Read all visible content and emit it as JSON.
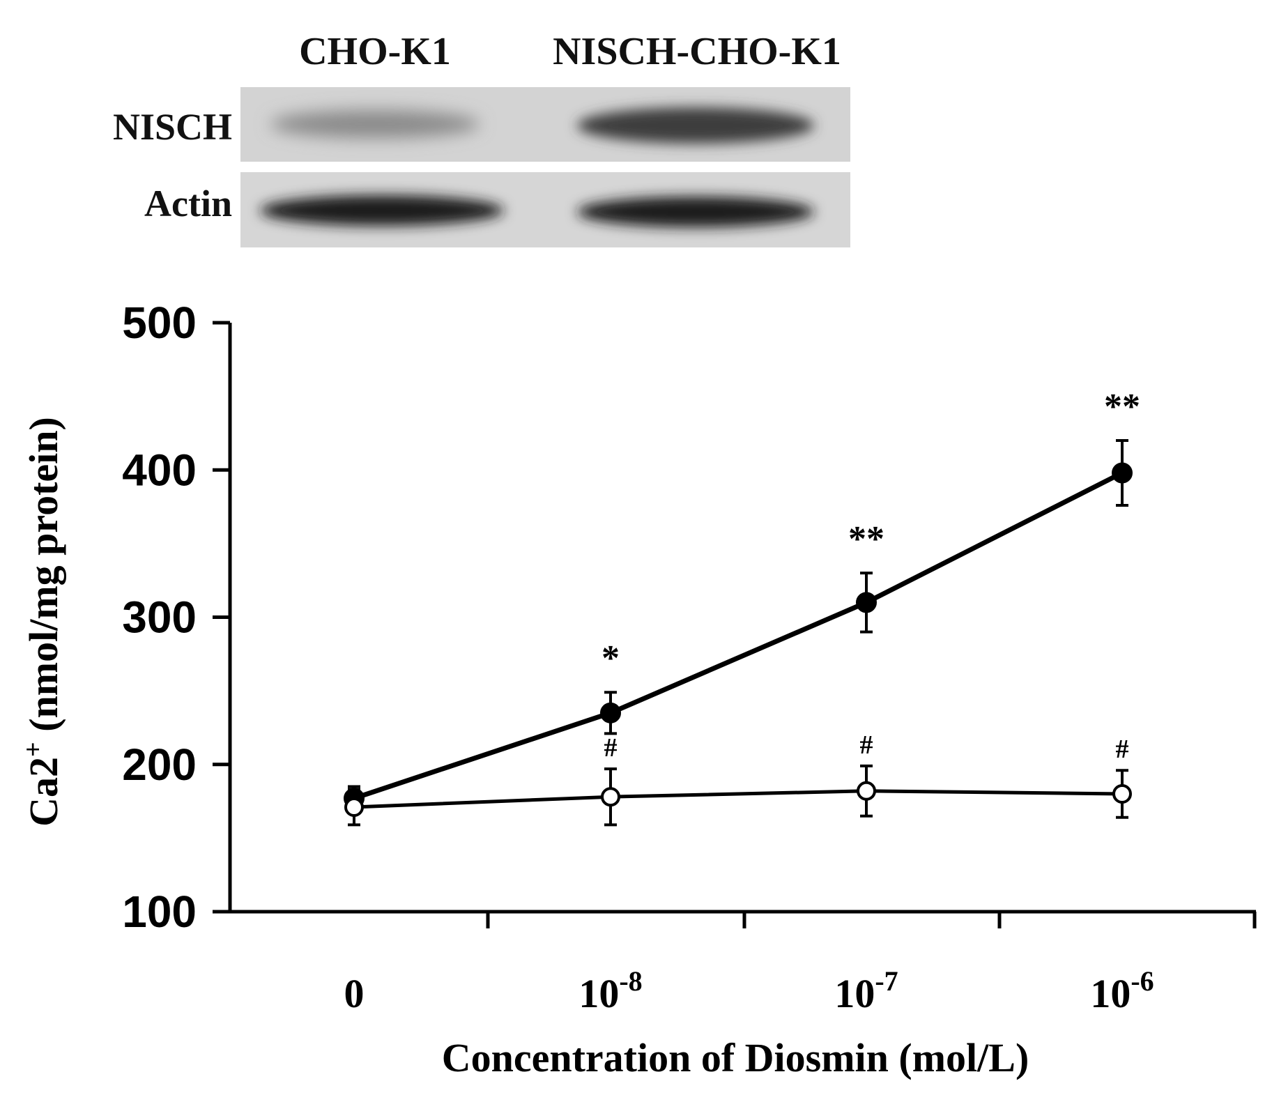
{
  "blot": {
    "columns": [
      "CHO-K1",
      "NISCH-CHO-K1"
    ],
    "rows": [
      "NISCH",
      "Actin"
    ]
  },
  "chart_data": {
    "type": "line",
    "categories": [
      "0",
      "10-8",
      "10-7",
      "10-6"
    ],
    "category_display": [
      {
        "base": "0",
        "exp": ""
      },
      {
        "base": "10",
        "exp": "-8"
      },
      {
        "base": "10",
        "exp": "-7"
      },
      {
        "base": "10",
        "exp": "-6"
      }
    ],
    "xlabel": "Concentration of Diosmin (mol/L)",
    "ylabel": {
      "main": "Ca2",
      "sup": "+",
      "rest": " (nmol/mg protein)"
    },
    "ylim": [
      100,
      500
    ],
    "yticks": [
      100,
      200,
      300,
      400,
      500
    ],
    "grid": false,
    "series": [
      {
        "marker": "filled-circle",
        "values": [
          177,
          235,
          310,
          398
        ],
        "errors": [
          8,
          14,
          20,
          22
        ],
        "annotations": [
          "",
          "*",
          "**",
          "**"
        ]
      },
      {
        "marker": "open-circle",
        "values": [
          171,
          178,
          182,
          180
        ],
        "errors": [
          12,
          19,
          17,
          16
        ],
        "annotations": [
          "",
          "#",
          "#",
          "#"
        ]
      }
    ]
  }
}
